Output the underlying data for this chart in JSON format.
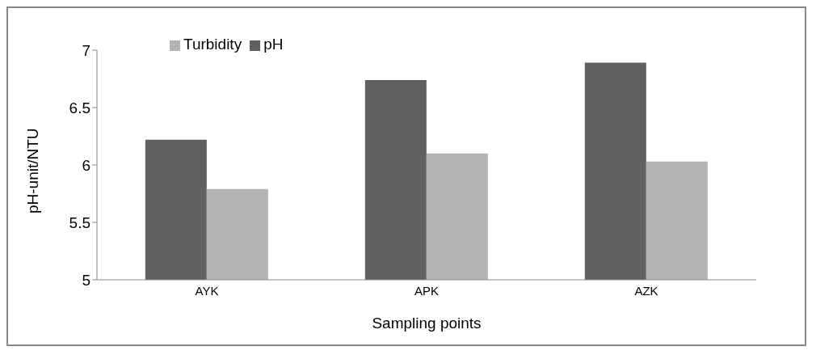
{
  "chart_data": {
    "type": "bar",
    "xlabel": "Sampling points",
    "ylabel": "pH-unit/NTU",
    "categories": [
      "AYK",
      "APK",
      "AZK"
    ],
    "series": [
      {
        "name": "pH",
        "color": "#606060",
        "values": [
          6.22,
          6.74,
          6.89
        ]
      },
      {
        "name": "Turbidity",
        "color": "#b3b3b3",
        "values": [
          5.79,
          6.1,
          6.03
        ]
      }
    ],
    "ylim": [
      5,
      7
    ],
    "yticks": [
      5,
      5.5,
      6,
      6.5,
      7
    ],
    "grid": false,
    "legend": "top left"
  }
}
